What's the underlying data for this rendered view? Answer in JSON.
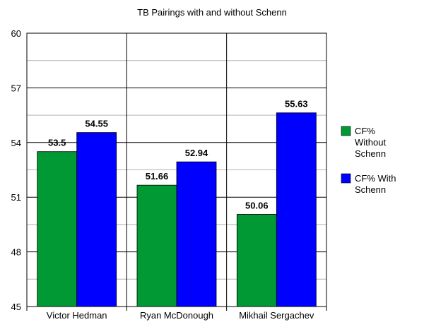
{
  "chart_data": {
    "type": "bar",
    "title": "TB Pairings with and without Schenn",
    "categories": [
      "Victor Hedman",
      "Ryan McDonough",
      "Mikhail Sergachev"
    ],
    "series": [
      {
        "name": "CF% Without Schenn",
        "legend_lines": [
          "CF%",
          "Without",
          "Schenn"
        ],
        "color": "#009933",
        "values": [
          53.5,
          51.66,
          50.06
        ],
        "labels": [
          "53.5",
          "51.66",
          "50.06"
        ]
      },
      {
        "name": "CF% With Schenn",
        "legend_lines": [
          "CF% With",
          "Schenn"
        ],
        "color": "#0000ff",
        "values": [
          54.55,
          52.94,
          55.63
        ],
        "labels": [
          "54.55",
          "52.94",
          "55.63"
        ]
      }
    ],
    "ylim": [
      45,
      60
    ],
    "yticks": [
      45,
      48,
      51,
      54,
      57,
      60
    ],
    "ytick_labels": [
      "45",
      "48",
      "51",
      "54",
      "57",
      "60"
    ],
    "grid": {
      "major": true,
      "minor": true
    },
    "legend_position": "right"
  }
}
